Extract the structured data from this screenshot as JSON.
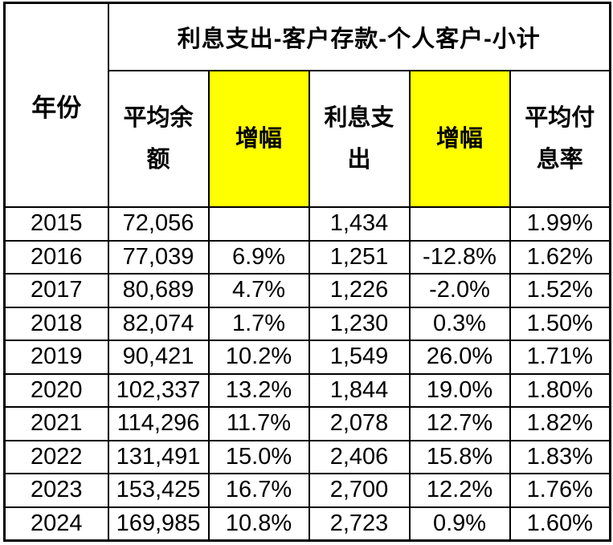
{
  "colors": {
    "highlight": "#FFFF00",
    "border": "#000000",
    "text": "#000000",
    "background": "#FFFFFF"
  },
  "chart_data": {
    "type": "table",
    "title": "利息支出-客户存款-个人客户-小计",
    "corner_header": "年份",
    "columns": [
      "平均余额",
      "增幅",
      "利息支出",
      "增幅",
      "平均付息率"
    ],
    "highlighted_columns": [
      1,
      3
    ],
    "rows": [
      {
        "year": "2015",
        "cells": [
          "72,056",
          "",
          "1,434",
          "",
          "1.99%"
        ]
      },
      {
        "year": "2016",
        "cells": [
          "77,039",
          "6.9%",
          "1,251",
          "-12.8%",
          "1.62%"
        ]
      },
      {
        "year": "2017",
        "cells": [
          "80,689",
          "4.7%",
          "1,226",
          "-2.0%",
          "1.52%"
        ]
      },
      {
        "year": "2018",
        "cells": [
          "82,074",
          "1.7%",
          "1,230",
          "0.3%",
          "1.50%"
        ]
      },
      {
        "year": "2019",
        "cells": [
          "90,421",
          "10.2%",
          "1,549",
          "26.0%",
          "1.71%"
        ]
      },
      {
        "year": "2020",
        "cells": [
          "102,337",
          "13.2%",
          "1,844",
          "19.0%",
          "1.80%"
        ]
      },
      {
        "year": "2021",
        "cells": [
          "114,296",
          "11.7%",
          "2,078",
          "12.7%",
          "1.82%"
        ]
      },
      {
        "year": "2022",
        "cells": [
          "131,491",
          "15.0%",
          "2,406",
          "15.8%",
          "1.83%"
        ]
      },
      {
        "year": "2023",
        "cells": [
          "153,425",
          "16.7%",
          "2,700",
          "12.2%",
          "1.76%"
        ]
      },
      {
        "year": "2024",
        "cells": [
          "169,985",
          "10.8%",
          "2,723",
          "0.9%",
          "1.60%"
        ]
      }
    ]
  }
}
